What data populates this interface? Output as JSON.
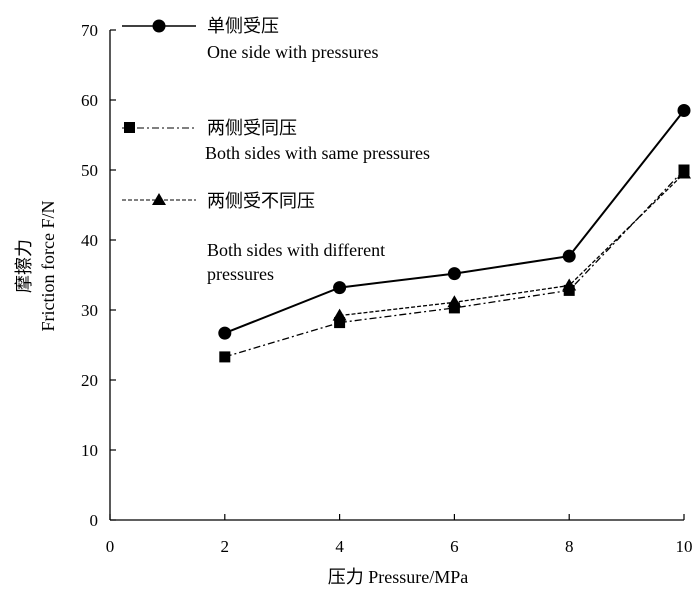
{
  "chart_data": {
    "type": "line",
    "xlabel": "压力 Pressure/MPa",
    "ylabel_cn": "摩擦力",
    "ylabel_en": "Friction force F/N",
    "xlim": [
      0,
      10
    ],
    "ylim": [
      0,
      70
    ],
    "xticks": [
      0,
      2,
      4,
      6,
      8,
      10
    ],
    "yticks": [
      0,
      10,
      20,
      30,
      40,
      50,
      60,
      70
    ],
    "grid": false,
    "legend_position": "top-left",
    "x": [
      2,
      4,
      6,
      8,
      10
    ],
    "series": [
      {
        "name_cn": "单侧受压",
        "name_en": "One side with pressures",
        "marker": "circle",
        "line": "solid",
        "values": [
          26.7,
          33.2,
          35.2,
          37.7,
          58.5
        ]
      },
      {
        "name_cn": "两侧受同压",
        "name_en_lines": [
          "Both sides with same pressures"
        ],
        "marker": "square",
        "line": "dashdot",
        "values": [
          23.3,
          28.2,
          30.3,
          32.8,
          50.0
        ]
      },
      {
        "name_cn": "两侧受不同压",
        "name_en_lines": [
          "Both sides with different",
          "pressures"
        ],
        "marker": "triangle",
        "line": "dashed",
        "values": [
          null,
          29.2,
          31.1,
          33.5,
          49.5
        ]
      }
    ]
  }
}
